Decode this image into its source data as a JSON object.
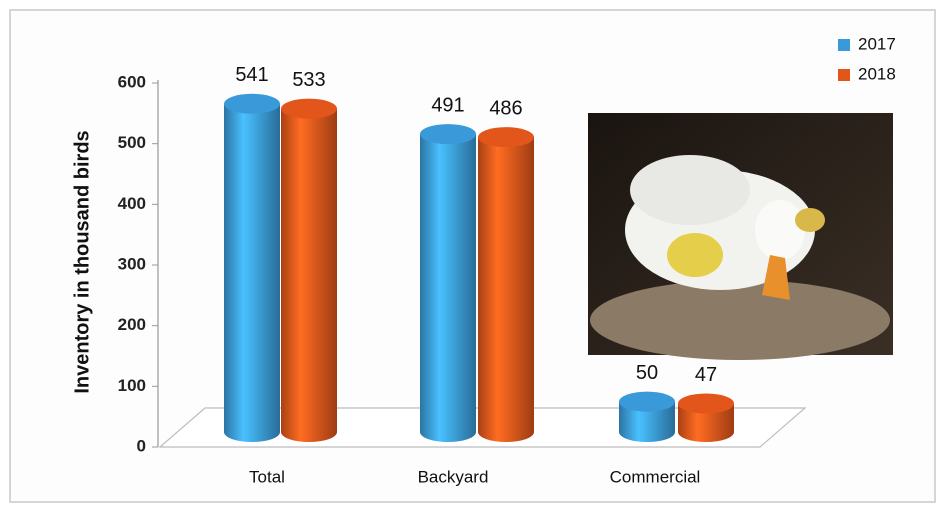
{
  "chart_data": {
    "type": "bar",
    "y_label": "Inventory in thousand birds",
    "categories": [
      "Total",
      "Backyard",
      "Commercial"
    ],
    "series": [
      {
        "name": "2017",
        "color": "#3a9ad9",
        "values": [
          541,
          491,
          50
        ]
      },
      {
        "name": "2018",
        "color": "#e2561b",
        "values": [
          533,
          486,
          47
        ]
      }
    ],
    "ylim": [
      0,
      600
    ],
    "yticks": [
      0,
      100,
      200,
      300,
      400,
      500,
      600
    ],
    "legend": "top-right"
  }
}
